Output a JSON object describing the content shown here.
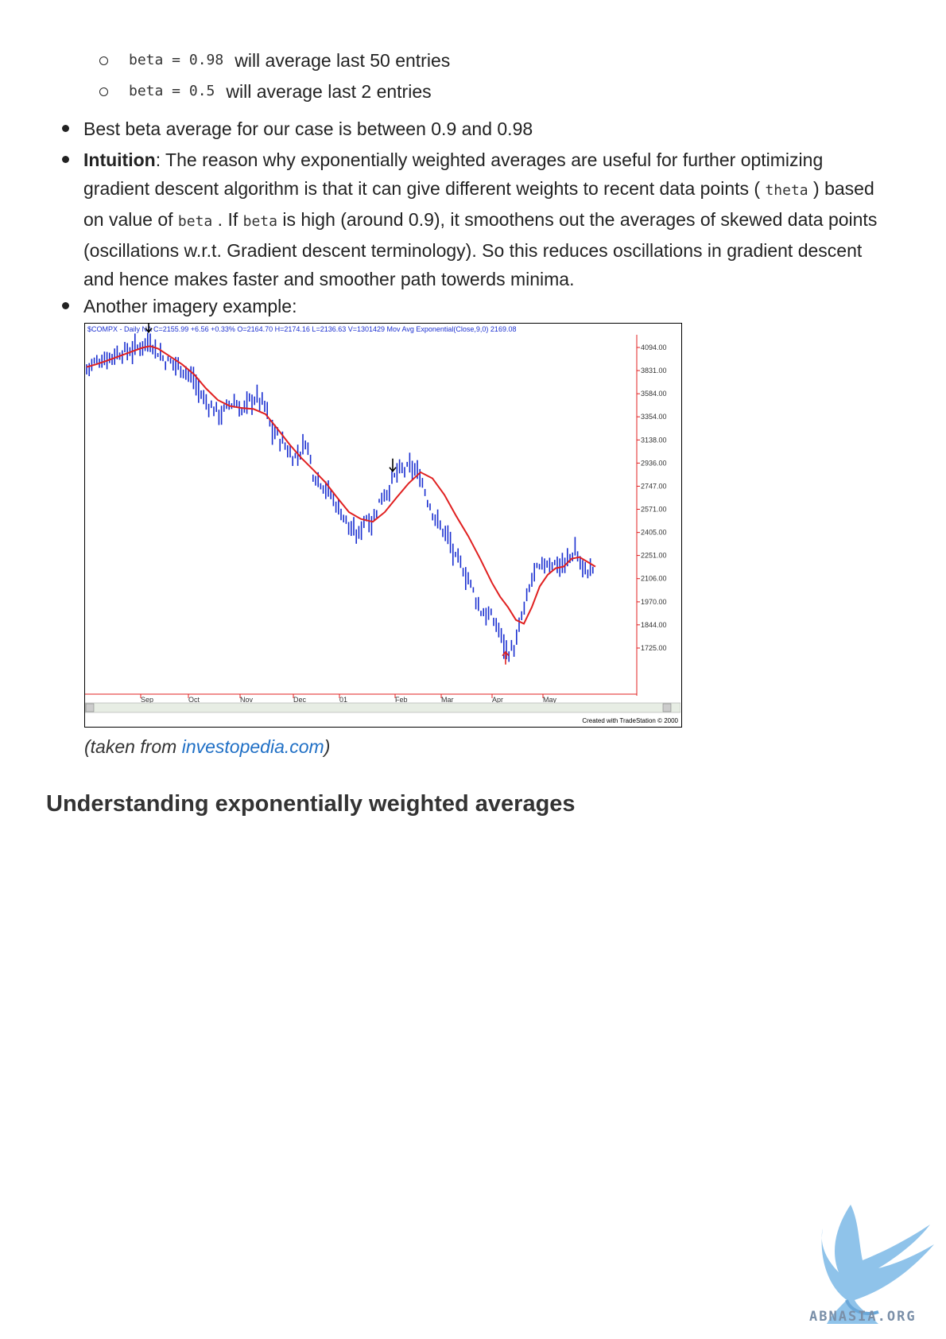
{
  "sub_bullets": [
    {
      "code": "beta = 0.98",
      "text": "will average last 50 entries"
    },
    {
      "code": "beta = 0.5",
      "text": "will average last 2 entries"
    }
  ],
  "bullet_best": "Best beta average for our case is between 0.9 and 0.98",
  "intuition": {
    "label": "Intuition",
    "text1": ": The reason why exponentially weighted averages are useful for further optimizing gradient descent algorithm is that it can give different weights to recent data points ( ",
    "code_theta": "theta",
    "text2": " ) based on value of ",
    "code_beta1": "beta",
    "text3": " . If ",
    "code_beta2": "beta",
    "text4": " is high (around 0.9), it smoothens out the averages of skewed data points (oscillations w.r.t. Gradient descent terminology). So this reduces oscillations in gradient descent and hence makes faster and smoother path towerds minima."
  },
  "bullet_imagery": "Another imagery example:",
  "chart": {
    "header": "$COMPX - Daily  NA  C=2155.99  +6.56  +0.33%  O=2164.70  H=2174.16  L=2136.63  V=1301429  Mov Avg Exponential(Close,9,0)  2169.08",
    "footer": "Created with TradeStation © 2000"
  },
  "chart_data": {
    "type": "line",
    "y_ticks": [
      "4094.00",
      "3831.00",
      "3584.00",
      "3354.00",
      "3138.00",
      "2936.00",
      "2747.00",
      "2571.00",
      "2405.00",
      "2251.00",
      "2106.00",
      "1970.00",
      "1844.00",
      "1725.00"
    ],
    "x_ticks": [
      "Sep",
      "Oct",
      "Nov",
      "Dec",
      "01",
      "Feb",
      "Mar",
      "Apr",
      "May"
    ],
    "series": [
      {
        "name": "$COMPX - Daily",
        "color": "#1a2fd0"
      },
      {
        "name": "Mov Avg Exponential(Close,9,0)",
        "color": "#e02020"
      }
    ],
    "price_x": [
      0,
      8,
      15,
      25,
      38,
      50,
      62,
      72,
      80,
      90,
      100,
      112,
      125,
      135,
      142,
      150,
      160,
      170,
      180,
      188,
      195,
      205,
      215,
      225,
      232,
      240,
      250,
      260,
      268,
      276,
      285,
      295,
      305,
      315,
      325,
      335,
      342,
      350,
      360,
      370,
      380,
      390,
      400,
      410,
      420,
      430,
      438,
      445,
      455,
      462,
      470,
      478,
      485,
      495,
      505,
      515,
      522,
      530,
      540,
      548,
      555,
      562,
      570,
      578,
      585,
      592,
      600,
      608,
      615,
      622,
      630,
      640
    ],
    "price_y": [
      3850,
      3910,
      3950,
      3970,
      4020,
      4050,
      4080,
      4140,
      4170,
      4040,
      3930,
      3910,
      3820,
      3730,
      3600,
      3500,
      3430,
      3380,
      3480,
      3500,
      3400,
      3520,
      3540,
      3450,
      3240,
      3180,
      3080,
      2980,
      3020,
      3140,
      2850,
      2780,
      2700,
      2600,
      2500,
      2400,
      2380,
      2520,
      2480,
      2660,
      2720,
      2860,
      2880,
      2900,
      2820,
      2620,
      2520,
      2440,
      2380,
      2240,
      2200,
      2120,
      2050,
      1920,
      1900,
      1850,
      1780,
      1700,
      1740,
      1900,
      2000,
      2150,
      2160,
      2210,
      2200,
      2200,
      2180,
      2240,
      2290,
      2180,
      2150,
      2180
    ],
    "ema_x": [
      0,
      12,
      25,
      40,
      55,
      70,
      80,
      90,
      105,
      120,
      135,
      150,
      165,
      180,
      195,
      210,
      225,
      240,
      255,
      270,
      285,
      300,
      315,
      330,
      345,
      360,
      375,
      390,
      405,
      420,
      435,
      450,
      465,
      480,
      495,
      510,
      520,
      530,
      540,
      550,
      560,
      570,
      580,
      590,
      600,
      610,
      620,
      630,
      640
    ],
    "ema_y": [
      3870,
      3900,
      3940,
      3990,
      4040,
      4090,
      4110,
      4080,
      3990,
      3900,
      3790,
      3640,
      3520,
      3460,
      3440,
      3430,
      3380,
      3240,
      3100,
      2980,
      2880,
      2780,
      2660,
      2550,
      2500,
      2480,
      2550,
      2660,
      2770,
      2860,
      2810,
      2680,
      2520,
      2380,
      2230,
      2080,
      2000,
      1940,
      1870,
      1850,
      1940,
      2060,
      2130,
      2170,
      2180,
      2230,
      2240,
      2210,
      2180
    ],
    "markers": [
      {
        "type": "down-arrow",
        "x": 78,
        "color": "#000000"
      },
      {
        "type": "down-arrow",
        "x": 385,
        "color": "#000000"
      },
      {
        "type": "up-arrow",
        "x": 527,
        "color": "#e02020"
      }
    ]
  },
  "caption": {
    "prefix": "(taken from ",
    "link": "investopedia.com",
    "suffix": ")"
  },
  "heading": "Understanding exponentially weighted averages",
  "logo_text": "ABNASIA.ORG"
}
